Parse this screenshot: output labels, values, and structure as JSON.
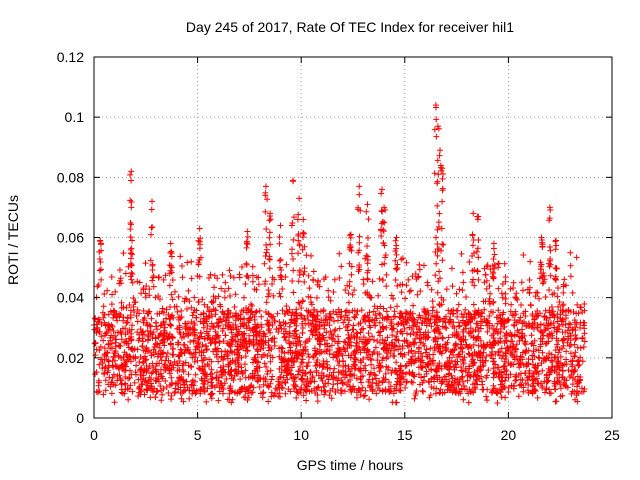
{
  "chart_data": {
    "type": "scatter",
    "title": "Day 245 of 2017, Rate Of TEC Index for receiver hil1",
    "xlabel": "GPS time / hours",
    "ylabel": "ROTI / TECUs",
    "xlim": [
      0,
      25
    ],
    "ylim": [
      0,
      0.12
    ],
    "xticks": [
      0,
      5,
      10,
      15,
      20,
      25
    ],
    "xtick_labels": [
      "0",
      "5",
      "10",
      "15",
      "20",
      "25"
    ],
    "yticks": [
      0,
      0.02,
      0.04,
      0.06,
      0.08,
      0.1,
      0.12
    ],
    "ytick_labels": [
      "0",
      "0.02",
      "0.04",
      "0.06",
      "0.08",
      "0.1",
      "0.12"
    ],
    "grid": true,
    "marker": "+",
    "marker_color": "#ff0000",
    "x_range_of_data": [
      0,
      23.7
    ],
    "series": [
      {
        "name": "ROTI",
        "note": "dense ROTI samples; base band approx 0.005-0.05 TECU throughout the day",
        "peaks": [
          {
            "x": 0.3,
            "y": 0.059
          },
          {
            "x": 1.8,
            "y": 0.082
          },
          {
            "x": 1.8,
            "y": 0.07
          },
          {
            "x": 2.8,
            "y": 0.072
          },
          {
            "x": 3.7,
            "y": 0.058
          },
          {
            "x": 5.1,
            "y": 0.063
          },
          {
            "x": 7.4,
            "y": 0.062
          },
          {
            "x": 8.3,
            "y": 0.077
          },
          {
            "x": 8.5,
            "y": 0.068
          },
          {
            "x": 9.0,
            "y": 0.064
          },
          {
            "x": 9.6,
            "y": 0.079
          },
          {
            "x": 9.9,
            "y": 0.073
          },
          {
            "x": 10.1,
            "y": 0.066
          },
          {
            "x": 12.4,
            "y": 0.061
          },
          {
            "x": 12.8,
            "y": 0.077
          },
          {
            "x": 13.2,
            "y": 0.071
          },
          {
            "x": 13.9,
            "y": 0.076
          },
          {
            "x": 14.0,
            "y": 0.07
          },
          {
            "x": 14.6,
            "y": 0.06
          },
          {
            "x": 16.5,
            "y": 0.104
          },
          {
            "x": 16.6,
            "y": 0.097
          },
          {
            "x": 16.7,
            "y": 0.089
          },
          {
            "x": 16.8,
            "y": 0.083
          },
          {
            "x": 18.3,
            "y": 0.068
          },
          {
            "x": 18.5,
            "y": 0.067
          },
          {
            "x": 19.3,
            "y": 0.058
          },
          {
            "x": 21.6,
            "y": 0.06
          },
          {
            "x": 22.0,
            "y": 0.07
          },
          {
            "x": 22.3,
            "y": 0.059
          }
        ]
      }
    ]
  }
}
